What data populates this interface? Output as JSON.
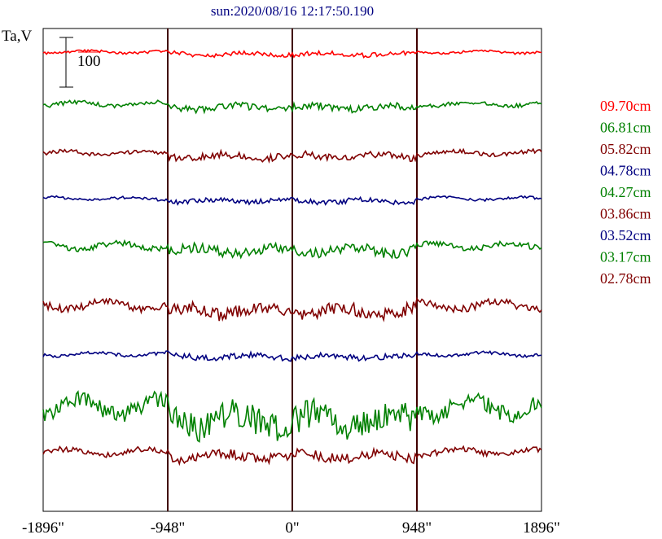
{
  "header": {
    "title": "sun:2020/08/16 12:17:50.190"
  },
  "chart_data": {
    "type": "line",
    "title": "sun:2020/08/16 12:17:50.190",
    "ylabel": "Ta,V",
    "scale_bar_label": "100",
    "x_unit": "arcsec",
    "x_range": [
      -1896,
      1896
    ],
    "x_ticks": [
      -1896,
      -948,
      0,
      948,
      1896
    ],
    "x_tick_labels": [
      "-1896\"",
      "-948\"",
      "0\"",
      "948\"",
      "1896\""
    ],
    "disk_limb_markers": [
      -948,
      0,
      948
    ],
    "grid": false,
    "legend_position": "right",
    "series": [
      {
        "name": "09.70cm",
        "color": "#ff0000"
      },
      {
        "name": "06.81cm",
        "color": "#008000"
      },
      {
        "name": "05.82cm",
        "color": "#800000"
      },
      {
        "name": "04.78cm",
        "color": "#000080"
      },
      {
        "name": "04.27cm",
        "color": "#008000"
      },
      {
        "name": "03.86cm",
        "color": "#800000"
      },
      {
        "name": "03.52cm",
        "color": "#000080"
      },
      {
        "name": "03.17cm",
        "color": "#008000"
      },
      {
        "name": "02.78cm",
        "color": "#800000"
      }
    ]
  },
  "colors": {
    "title": "#000080",
    "axis": "#000000",
    "marker": "#400000"
  }
}
